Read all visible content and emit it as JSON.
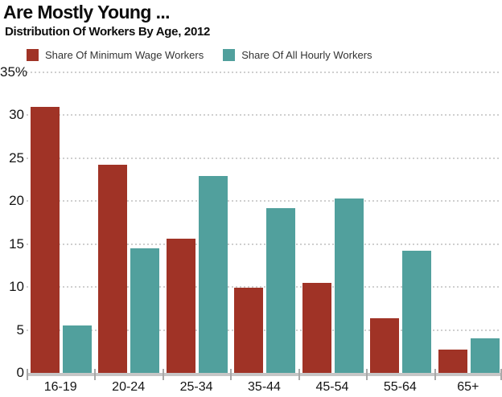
{
  "header": {
    "title": "Are Mostly Young ...",
    "subtitle": "Distribution Of Workers By Age, 2012"
  },
  "chart_data": {
    "type": "bar",
    "title": "Are Mostly Young ...",
    "subtitle": "Distribution Of Workers By Age, 2012",
    "categories": [
      "16-19",
      "20-24",
      "25-34",
      "35-44",
      "45-54",
      "55-64",
      "65+"
    ],
    "series": [
      {
        "name": "Share Of Minimum Wage Workers",
        "color": "#A03326",
        "values": [
          31.0,
          24.2,
          15.6,
          9.9,
          10.5,
          6.4,
          2.7
        ]
      },
      {
        "name": "Share Of All Hourly Workers",
        "color": "#51A09D",
        "values": [
          5.5,
          14.5,
          22.9,
          19.2,
          20.3,
          14.2,
          4.0
        ]
      }
    ],
    "xlabel": "",
    "ylabel": "",
    "ylim": [
      0,
      35
    ],
    "ytick_interval": 5,
    "ytick_labels": [
      "0",
      "5",
      "10",
      "15",
      "20",
      "25",
      "30",
      "35%"
    ],
    "grid": "horizontal-dotted",
    "legend_position": "top-left",
    "unit": "percent"
  },
  "colors": {
    "minimum_wage": "#A03326",
    "all_hourly": "#51A09D",
    "gridline": "#CFCFCF",
    "axis_line": "#C6C6C6",
    "axis_tick": "#A9A9A9",
    "text": "#141414",
    "legend_text": "#333333",
    "background": "#FFFFFF"
  }
}
